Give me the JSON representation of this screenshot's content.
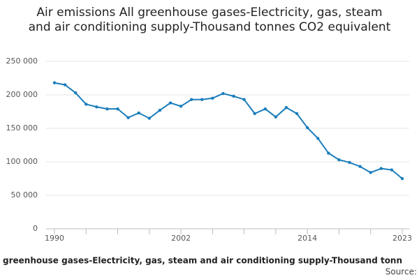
{
  "chart_data": {
    "type": "line",
    "title": "Air emissions All greenhouse gases-Electricity, gas, steam and air conditioning supply-Thousand tonnes CO2 equivalent",
    "x_label": "greenhouse gases-Electricity, gas, steam and air conditioning supply-Thousand tonn",
    "source": "Source:",
    "x": [
      1990,
      1991,
      1992,
      1993,
      1994,
      1995,
      1996,
      1997,
      1998,
      1999,
      2000,
      2001,
      2002,
      2003,
      2004,
      2005,
      2006,
      2007,
      2008,
      2009,
      2010,
      2011,
      2012,
      2013,
      2014,
      2015,
      2016,
      2017,
      2018,
      2019,
      2020,
      2021,
      2022,
      2023
    ],
    "series": [
      {
        "name": "Air emissions",
        "color": "#1a7dbb",
        "values": [
          218000,
          215000,
          203000,
          186000,
          182000,
          179000,
          179000,
          166000,
          173000,
          165000,
          177000,
          188000,
          183000,
          193000,
          193000,
          195000,
          202000,
          198000,
          193000,
          172000,
          179000,
          167000,
          181000,
          172000,
          151000,
          135000,
          113000,
          103000,
          99000,
          93000,
          84000,
          90000,
          88000,
          75000
        ]
      }
    ],
    "xlim": [
      1990,
      2023
    ],
    "xticks": [
      1990,
      2002,
      2014,
      2023
    ],
    "xminorticks": [
      1993,
      1996,
      1999,
      2005,
      2008,
      2011,
      2017,
      2020
    ],
    "ylim": [
      0,
      250000
    ],
    "yticks": [
      0,
      {
        "value": 50000,
        "label": "50 000"
      },
      {
        "value": 100000,
        "label": "100 000"
      },
      {
        "value": 150000,
        "label": "150 000"
      },
      {
        "value": 200000,
        "label": "200 000"
      },
      {
        "value": 250000,
        "label": "250 000"
      }
    ],
    "grid": true
  }
}
